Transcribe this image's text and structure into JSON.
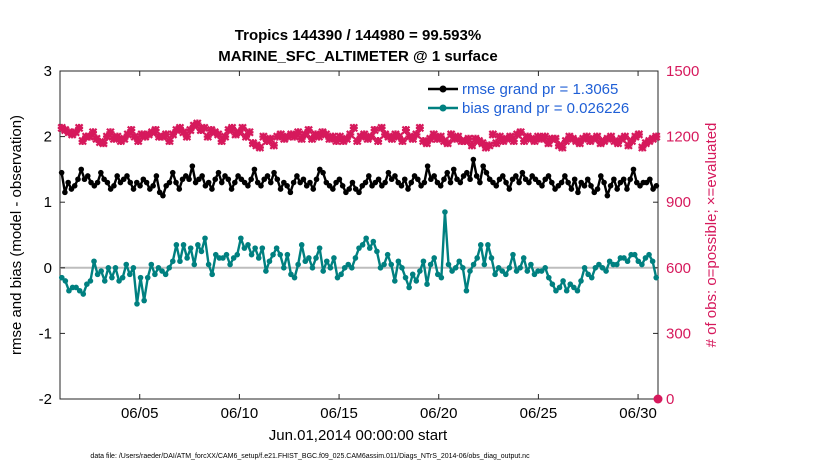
{
  "chart_data": {
    "type": "line",
    "title": "Tropics 144390 / 144980 = 99.593%",
    "subtitle": "MARINE_SFC_ALTIMETER @ 1 surface",
    "xlabel": "Jun.01,2014 00:00:00 start",
    "ylabel_left": "rmse and bias (model - observation)",
    "ylabel_right": "# of obs: o=possible; ×=evaluated",
    "x_ticks": [
      "06/05",
      "06/10",
      "06/15",
      "06/20",
      "06/25",
      "06/30"
    ],
    "x_tick_days": [
      5,
      10,
      15,
      20,
      25,
      30
    ],
    "xlim": [
      1,
      31
    ],
    "ylim_left": [
      -2,
      3
    ],
    "ylim_right": [
      0,
      1500
    ],
    "y_ticks_left": [
      "-2",
      "-1",
      "0",
      "1",
      "2",
      "3"
    ],
    "y_ticks_right": [
      "0",
      "300",
      "600",
      "900",
      "1200",
      "1500"
    ],
    "legend_position": "top-right",
    "colors": {
      "rmse": "#000000",
      "bias": "#008080",
      "count": "#d6195c",
      "legend_text": "#1f5fd6",
      "zero_line": "#bdbdbd"
    },
    "series": [
      {
        "name": "rmse",
        "legend": "rmse grand pr = 1.3065",
        "values": [
          1.45,
          1.15,
          1.3,
          1.2,
          1.25,
          1.35,
          1.5,
          1.35,
          1.4,
          1.3,
          1.25,
          1.3,
          1.45,
          1.35,
          1.3,
          1.2,
          1.25,
          1.4,
          1.3,
          1.35,
          1.4,
          1.3,
          1.2,
          1.3,
          1.25,
          1.35,
          1.3,
          1.2,
          1.25,
          1.4,
          1.15,
          1.1,
          1.25,
          1.3,
          1.45,
          1.3,
          1.2,
          1.35,
          1.4,
          1.35,
          1.55,
          1.3,
          1.35,
          1.4,
          1.25,
          1.3,
          1.2,
          1.35,
          1.45,
          1.3,
          1.4,
          1.35,
          1.2,
          1.3,
          1.4,
          1.35,
          1.3,
          1.25,
          1.35,
          1.5,
          1.3,
          1.25,
          1.35,
          1.4,
          1.3,
          1.45,
          1.35,
          1.2,
          1.3,
          1.25,
          1.15,
          1.3,
          1.4,
          1.3,
          1.35,
          1.25,
          1.3,
          1.2,
          1.35,
          1.5,
          1.45,
          1.3,
          1.25,
          1.2,
          1.3,
          1.35,
          1.25,
          1.15,
          1.2,
          1.3,
          1.2,
          1.15,
          1.25,
          1.3,
          1.4,
          1.25,
          1.3,
          1.35,
          1.25,
          1.3,
          1.45,
          1.35,
          1.4,
          1.3,
          1.25,
          1.35,
          1.2,
          1.3,
          1.4,
          1.35,
          1.25,
          1.3,
          1.55,
          1.35,
          1.4,
          1.3,
          1.25,
          1.35,
          1.45,
          1.3,
          1.5,
          1.35,
          1.3,
          1.4,
          1.45,
          1.35,
          1.65,
          1.4,
          1.3,
          1.55,
          1.45,
          1.35,
          1.3,
          1.25,
          1.35,
          1.4,
          1.3,
          1.2,
          1.35,
          1.4,
          1.3,
          1.45,
          1.35,
          1.3,
          1.4,
          1.35,
          1.3,
          1.25,
          1.35,
          1.4,
          1.3,
          1.2,
          1.25,
          1.3,
          1.4,
          1.3,
          1.2,
          1.35,
          1.15,
          1.3,
          1.25,
          1.35,
          1.25,
          1.15,
          1.2,
          1.4,
          1.3,
          1.1,
          1.25,
          1.35,
          1.2,
          1.3,
          1.35,
          1.2,
          1.35,
          1.5,
          1.3,
          1.25,
          1.3,
          1.3,
          1.35,
          1.2,
          1.25
        ]
      },
      {
        "name": "bias",
        "legend": "bias grand pr = 0.026226",
        "values": [
          -0.15,
          -0.2,
          -0.35,
          -0.3,
          -0.3,
          -0.35,
          -0.4,
          -0.25,
          -0.2,
          0.1,
          -0.1,
          -0.05,
          -0.2,
          0.0,
          -0.15,
          0.0,
          -0.2,
          -0.15,
          0.05,
          -0.1,
          0.0,
          -0.55,
          -0.15,
          -0.5,
          -0.15,
          0.05,
          -0.1,
          0.0,
          -0.05,
          -0.1,
          0.0,
          0.1,
          0.35,
          0.1,
          0.35,
          0.15,
          0.3,
          0.05,
          0.35,
          0.25,
          0.45,
          0.05,
          -0.1,
          0.2,
          0.15,
          0.15,
          0.2,
          0.05,
          0.15,
          0.2,
          0.45,
          0.3,
          0.35,
          0.2,
          0.3,
          0.15,
          0.3,
          -0.05,
          0.1,
          0.2,
          0.3,
          0.2,
          0.0,
          0.2,
          -0.1,
          -0.15,
          0.05,
          0.35,
          0.1,
          0.15,
          0.0,
          0.15,
          0.3,
          -0.05,
          0.1,
          0.0,
          0.15,
          -0.15,
          -0.1,
          0.0,
          0.05,
          0.0,
          0.15,
          0.3,
          0.35,
          0.45,
          0.3,
          0.4,
          0.25,
          0.0,
          0.05,
          0.2,
          0.05,
          -0.2,
          0.1,
          0.0,
          -0.15,
          -0.3,
          -0.1,
          -0.2,
          -0.05,
          0.1,
          -0.25,
          0.05,
          0.15,
          -0.1,
          -0.15,
          0.85,
          0.05,
          -0.05,
          0.0,
          0.1,
          0.0,
          -0.35,
          -0.05,
          0.05,
          0.15,
          0.35,
          0.05,
          0.35,
          0.15,
          -0.1,
          0.0,
          -0.05,
          -0.1,
          0.0,
          0.2,
          -0.05,
          0.0,
          0.15,
          -0.05,
          0.05,
          -0.1,
          -0.05,
          -0.05,
          0.0,
          -0.15,
          -0.25,
          -0.35,
          -0.3,
          -0.2,
          -0.35,
          -0.25,
          -0.3,
          -0.35,
          -0.2,
          0.0,
          -0.1,
          -0.15,
          0.0,
          0.05,
          0.0,
          -0.05,
          0.1,
          0.05,
          0.05,
          0.15,
          0.15,
          0.1,
          0.2,
          0.2,
          0.1,
          0.05,
          0.15,
          0.2,
          0.1,
          -0.15
        ]
      },
      {
        "name": "count evaluated",
        "marker": "x",
        "values": [
          1240,
          1230,
          1220,
          1210,
          1220,
          1240,
          1180,
          1200,
          1200,
          1220,
          1190,
          1175,
          1170,
          1200,
          1220,
          1190,
          1200,
          1180,
          1190,
          1210,
          1230,
          1200,
          1180,
          1210,
          1200,
          1210,
          1220,
          1230,
          1200,
          1200,
          1210,
          1180,
          1210,
          1230,
          1240,
          1220,
          1200,
          1230,
          1250,
          1260,
          1230,
          1240,
          1200,
          1230,
          1220,
          1210,
          1180,
          1200,
          1230,
          1240,
          1210,
          1220,
          1240,
          1200,
          1220,
          1170,
          1160,
          1150,
          1200,
          1180,
          1190,
          1160,
          1200,
          1210,
          1190,
          1200,
          1210,
          1200,
          1220,
          1190,
          1210,
          1230,
          1190,
          1210,
          1200,
          1220,
          1210,
          1190,
          1200,
          1180,
          1200,
          1180,
          1190,
          1210,
          1240,
          1180,
          1200,
          1210,
          1190,
          1200,
          1230,
          1180,
          1240,
          1210,
          1200,
          1190,
          1210,
          1200,
          1180,
          1230,
          1200,
          1190,
          1210,
          1240,
          1180,
          1170,
          1190,
          1210,
          1190,
          1200,
          1180,
          1170,
          1210,
          1190,
          1200,
          1180,
          1180,
          1190,
          1160,
          1190,
          1180,
          1170,
          1150,
          1160,
          1210,
          1170,
          1200,
          1180,
          1190,
          1200,
          1180,
          1210,
          1220,
          1180,
          1200,
          1190,
          1180,
          1200,
          1190,
          1200,
          1170,
          1190,
          1190,
          1160,
          1150,
          1180,
          1200,
          1190,
          1180,
          1170,
          1190,
          1200,
          1180,
          1190,
          1200,
          1170,
          1180,
          1190,
          1200,
          1180,
          1170,
          1190,
          1200,
          1160,
          1180,
          1200,
          1210,
          1150,
          1170,
          1180,
          1190,
          1200
        ]
      },
      {
        "name": "count possible",
        "marker": "o",
        "values": [
          0
        ]
      }
    ]
  },
  "footer": "data file: /Users/raeder/DAI/ATM_forcXX/CAM6_setup/f.e21.FHIST_BGC.f09_025.CAM6assim.011/Diags_NTrS_2014-06/obs_diag_output.nc"
}
